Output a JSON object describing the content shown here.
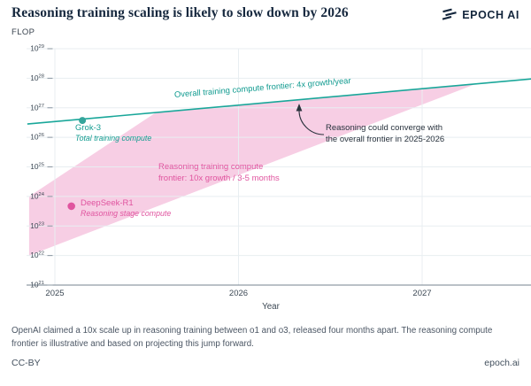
{
  "header": {
    "title": "Reasoning training scaling is likely to slow down by 2026",
    "brand": "EPOCH AI"
  },
  "colors": {
    "teal_line": "#1aa79a",
    "teal_text": "#149d91",
    "teal_dot": "#35a59b",
    "pink_band": "#f7cee4",
    "pink": "#e0549f",
    "grid": "#e8eef1",
    "axis_line": "#76838f",
    "tick_text": "#3c4854",
    "annotation": "#28323d"
  },
  "chart_data": {
    "type": "line",
    "title": "Reasoning training scaling is likely to slow down by 2026",
    "xlabel": "Year",
    "ylabel": "FLOP",
    "x_ticks": [
      2025,
      2026,
      2027
    ],
    "y_tick_exponents": [
      21,
      22,
      23,
      24,
      25,
      26,
      27,
      28,
      29
    ],
    "xlim": [
      2024.85,
      2027.6
    ],
    "ylim_exponents": [
      21,
      29
    ],
    "grid": true,
    "series": [
      {
        "name": "Overall training compute frontier",
        "growth": "4x growth/year",
        "points": [
          {
            "year": 2024.85,
            "log10_flop": 26.45
          },
          {
            "year": 2027.6,
            "log10_flop": 27.98
          }
        ]
      }
    ],
    "band": {
      "name": "Reasoning training compute frontier",
      "growth": "10x growth / 3-5 months",
      "polygon": [
        {
          "year": 2024.86,
          "log10_flop": 24.0
        },
        {
          "year": 2025.55,
          "log10_flop": 26.84
        },
        {
          "year": 2027.29,
          "log10_flop": 27.8
        },
        {
          "year": 2024.86,
          "log10_flop": 22.0
        }
      ]
    },
    "points": [
      {
        "name": "Grok-3",
        "desc": "Total training compute",
        "year": 2025.15,
        "log10_flop": 26.57,
        "series": "teal"
      },
      {
        "name": "DeepSeek-R1",
        "desc": "Reasoning stage compute",
        "year": 2025.09,
        "log10_flop": 23.67,
        "series": "pink"
      }
    ],
    "annotations": {
      "overall_line_label": "Overall training compute frontier: 4x growth/year",
      "band_label": "Reasoning training compute\nfrontier: 10x growth / 3-5 months",
      "converge_note": "Reasoning could converge with\nthe overall frontier in 2025-2026"
    }
  },
  "footer": {
    "note": "OpenAI claimed a 10x scale up in reasoning training between o1 and o3, released four months apart. The reasoning compute\nfrontier is illustrative and based on projecting this jump forward.",
    "license": "CC-BY",
    "site": "epoch.ai"
  }
}
